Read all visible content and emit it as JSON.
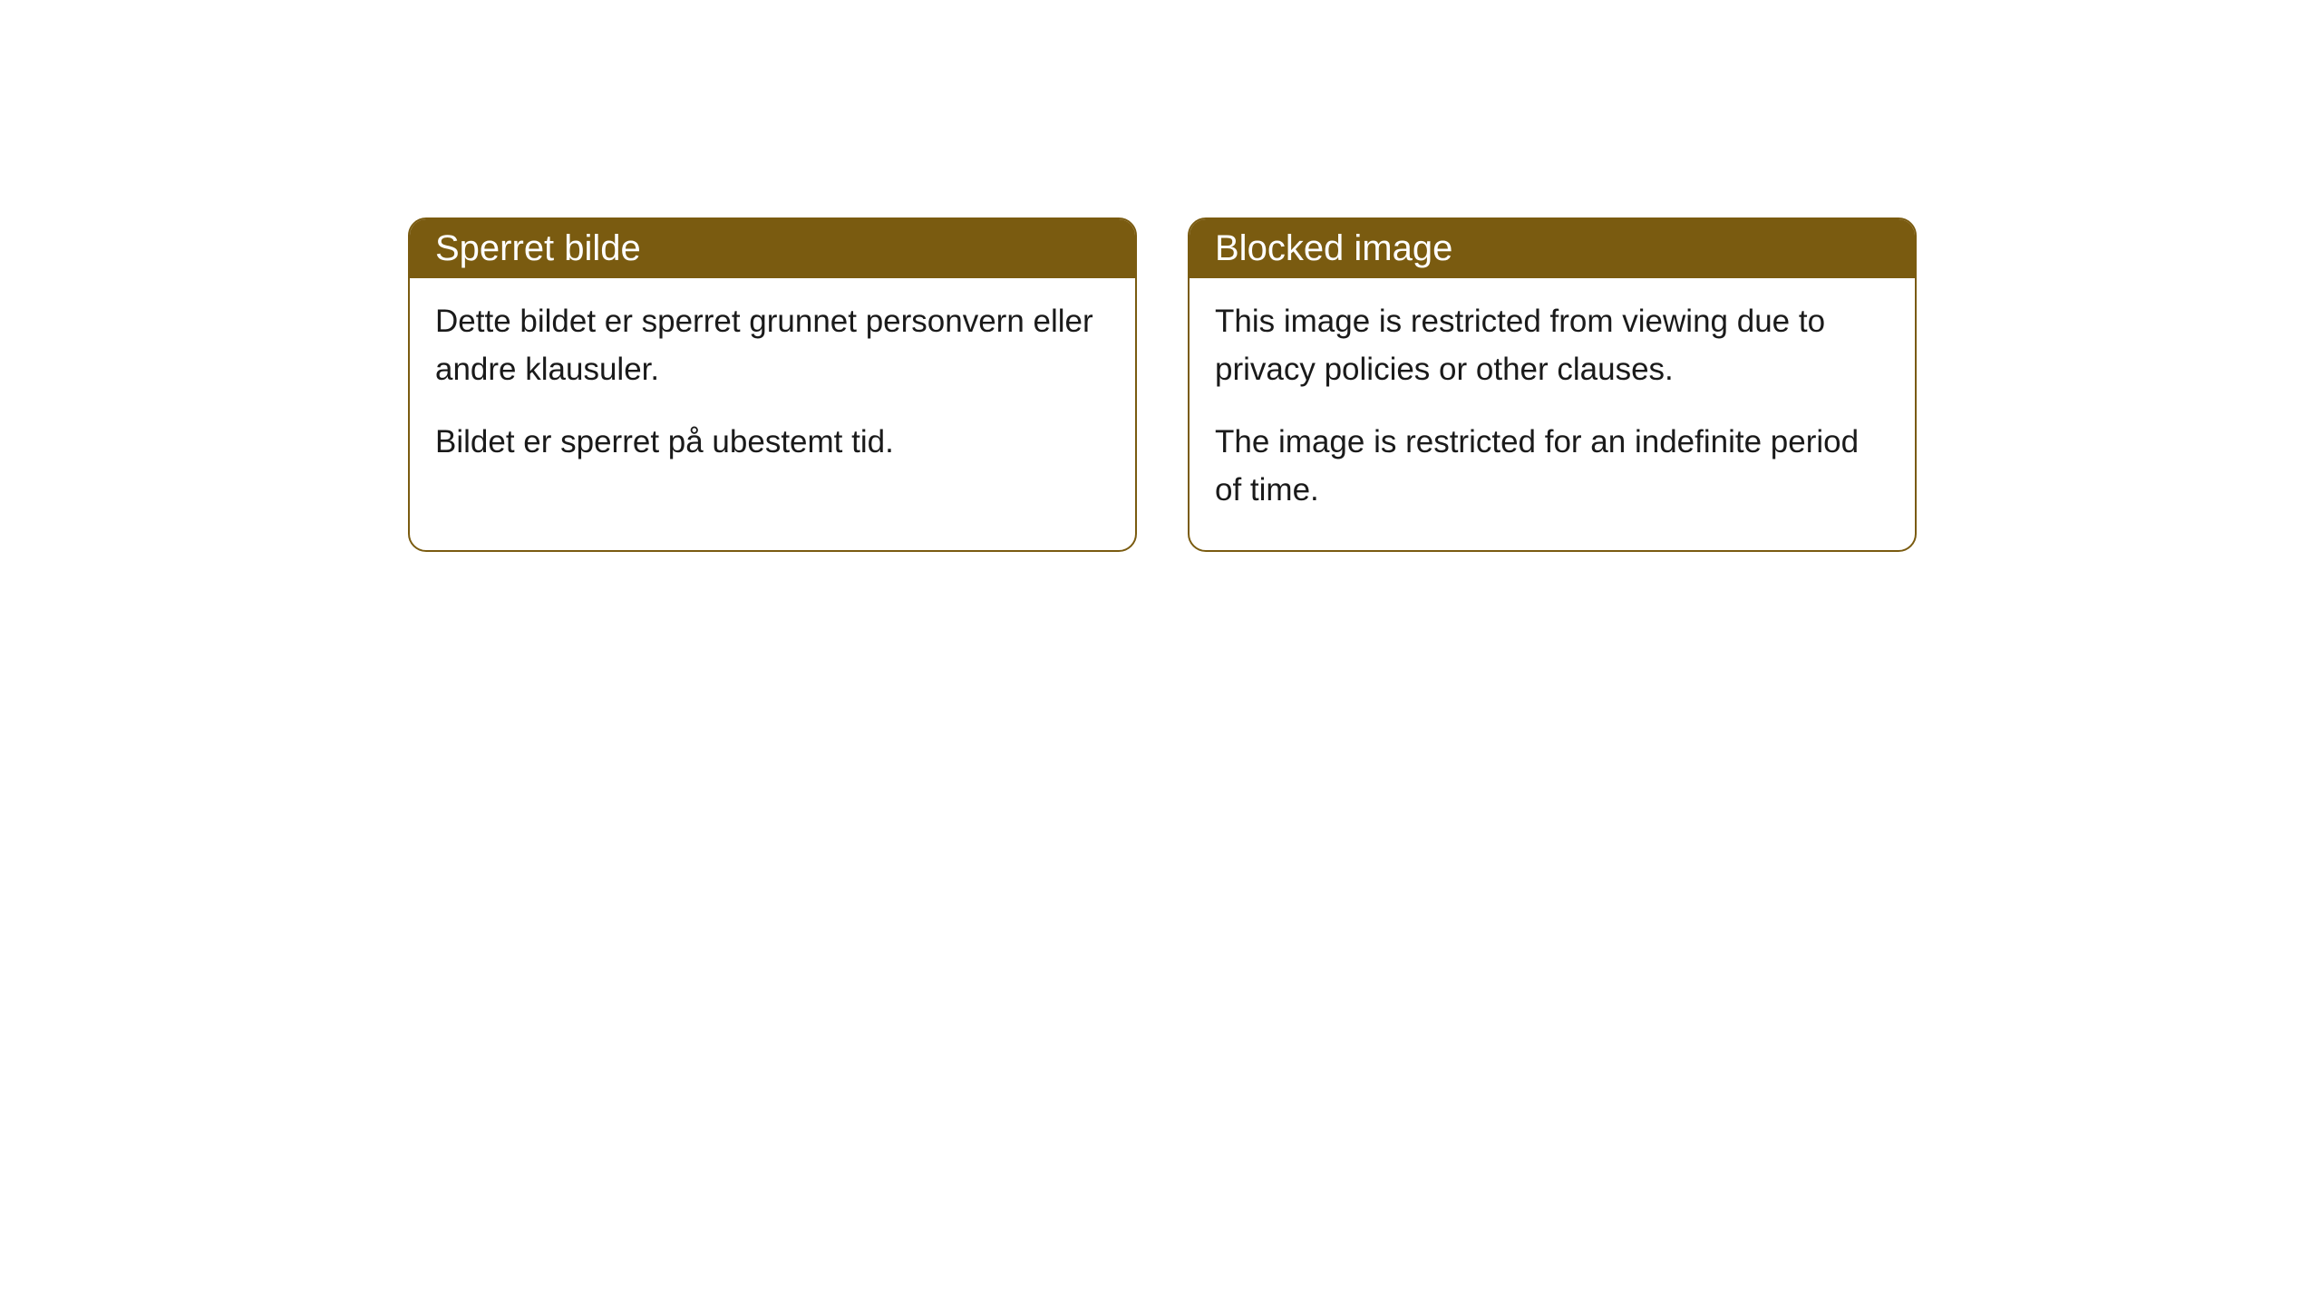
{
  "cards": [
    {
      "title": "Sperret bilde",
      "paragraph1": "Dette bildet er sperret grunnet personvern eller andre klausuler.",
      "paragraph2": "Bildet er sperret på ubestemt tid."
    },
    {
      "title": "Blocked image",
      "paragraph1": "This image is restricted from viewing due to privacy policies or other clauses.",
      "paragraph2": "The image is restricted for an indefinite period of time."
    }
  ],
  "styling": {
    "card_border_color": "#7a5b10",
    "header_background_color": "#7a5b10",
    "header_text_color": "#ffffff",
    "body_background_color": "#ffffff",
    "body_text_color": "#1a1a1a",
    "border_radius": 20,
    "header_fontsize": 40,
    "body_fontsize": 35
  }
}
